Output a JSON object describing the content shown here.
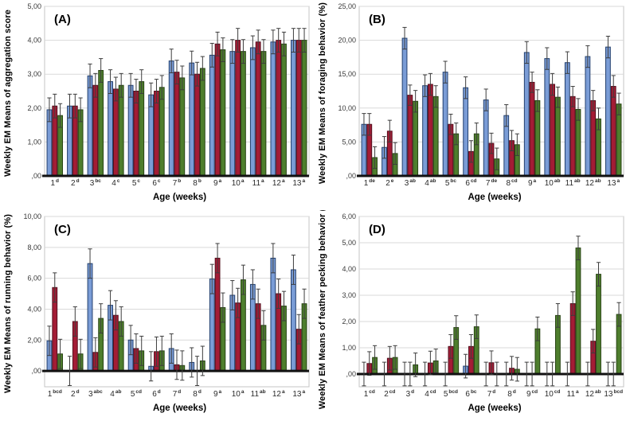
{
  "figure": {
    "background": "#ffffff",
    "grid_color": "#d9d9d9",
    "frame_color": "#c4c4c4",
    "axis_color": "#111111",
    "error_bar_color": "#3d3d3d",
    "tick_label_color": "#3a3a3a",
    "category_label_color": "#2b2b2b",
    "series_colors": [
      {
        "name": "blue-series",
        "fill": "#7a9cd6",
        "stroke": "#23406e"
      },
      {
        "name": "red-series",
        "fill": "#a31c35",
        "stroke": "#55101e"
      },
      {
        "name": "green-series",
        "fill": "#4e7e2d",
        "stroke": "#274312"
      }
    ]
  },
  "chart_data": [
    {
      "type": "bar",
      "panel_label": "(A)",
      "ylabel": "Weekly EM Means of aggregation score",
      "xlabel": "Age (weeks)",
      "ylim": [
        0,
        5
      ],
      "yticks": [
        0,
        1,
        2,
        3,
        4,
        5
      ],
      "ytick_labels": [
        ",00",
        "1,00",
        "2,00",
        "3,00",
        "4,00",
        "5,00"
      ],
      "grid": true,
      "legend": "none",
      "categories": [
        "1",
        "2",
        "3",
        "4",
        "5",
        "6",
        "7",
        "8",
        "9",
        "10",
        "11",
        "12",
        "13"
      ],
      "category_superscripts": [
        "d",
        "d",
        "bc",
        "c",
        "c",
        "c",
        "b",
        "b",
        "a",
        "a",
        "a",
        "a",
        "a"
      ],
      "series": [
        {
          "name": "blue",
          "values": [
            1.95,
            2.06,
            2.95,
            2.78,
            2.67,
            2.39,
            3.39,
            3.33,
            3.56,
            3.67,
            3.78,
            3.95,
            4.0
          ],
          "errors": [
            0.35,
            0.35,
            0.35,
            0.35,
            0.35,
            0.35,
            0.35,
            0.35,
            0.35,
            0.35,
            0.35,
            0.35,
            0.35
          ]
        },
        {
          "name": "red",
          "values": [
            2.06,
            2.06,
            2.67,
            2.56,
            2.5,
            2.5,
            3.06,
            3.0,
            3.89,
            4.0,
            3.95,
            4.0,
            4.0
          ],
          "errors": [
            0.35,
            0.35,
            0.35,
            0.35,
            0.35,
            0.35,
            0.35,
            0.35,
            0.35,
            0.35,
            0.35,
            0.35,
            0.35
          ]
        },
        {
          "name": "green",
          "values": [
            1.78,
            1.95,
            3.11,
            2.67,
            2.78,
            2.61,
            2.89,
            3.17,
            3.72,
            3.67,
            3.67,
            3.89,
            4.0
          ],
          "errors": [
            0.35,
            0.35,
            0.35,
            0.35,
            0.35,
            0.35,
            0.35,
            0.35,
            0.35,
            0.35,
            0.35,
            0.35,
            0.35
          ]
        }
      ]
    },
    {
      "type": "bar",
      "panel_label": "(B)",
      "ylabel": "Weekly EM Means of foraging behavior (%)",
      "xlabel": "Age (weeks)",
      "ylim": [
        0,
        25
      ],
      "yticks": [
        0,
        5,
        10,
        15,
        20,
        25
      ],
      "ytick_labels": [
        ",00",
        "5,00",
        "10,00",
        "15,00",
        "20,00",
        "25,00"
      ],
      "grid": true,
      "legend": "none",
      "categories": [
        "1",
        "2",
        "3",
        "4",
        "5",
        "6",
        "7",
        "8",
        "9",
        "10",
        "11",
        "12",
        "13"
      ],
      "category_superscripts": [
        "de",
        "e",
        "ab",
        "ab",
        "bc",
        "cd",
        "de",
        "cd",
        "a",
        "ab",
        "ab",
        "ab",
        "a"
      ],
      "series": [
        {
          "name": "blue",
          "values": [
            7.6,
            4.2,
            20.3,
            13.3,
            15.3,
            13.0,
            11.2,
            8.9,
            18.2,
            17.3,
            16.7,
            17.6,
            19.0
          ],
          "errors": [
            1.6,
            1.6,
            1.6,
            1.6,
            1.6,
            1.6,
            1.6,
            1.6,
            1.6,
            1.6,
            1.6,
            1.6,
            1.6
          ]
        },
        {
          "name": "red",
          "values": [
            7.6,
            6.6,
            11.9,
            13.5,
            7.6,
            3.6,
            4.8,
            5.2,
            13.8,
            13.5,
            11.7,
            11.1,
            13.2
          ],
          "errors": [
            1.6,
            1.6,
            1.5,
            1.6,
            1.5,
            1.6,
            1.5,
            1.5,
            1.5,
            1.6,
            1.5,
            1.5,
            1.6
          ]
        },
        {
          "name": "green",
          "values": [
            2.7,
            3.3,
            11.0,
            11.7,
            6.2,
            6.2,
            2.5,
            4.6,
            11.1,
            11.6,
            9.8,
            8.4,
            10.6
          ],
          "errors": [
            1.6,
            1.6,
            1.6,
            1.6,
            1.6,
            1.6,
            1.6,
            1.6,
            1.6,
            1.5,
            1.6,
            1.6,
            1.6
          ]
        }
      ]
    },
    {
      "type": "bar",
      "panel_label": "(C)",
      "ylabel": "Weekly EM Means of running behavior (%)",
      "xlabel": "Age (weeks)",
      "ylim": [
        0,
        10
      ],
      "yticks": [
        0,
        2,
        4,
        6,
        8,
        10
      ],
      "ytick_labels": [
        ",00",
        "2,00",
        "4,00",
        "6,00",
        "8,00",
        "10,00"
      ],
      "grid": true,
      "legend": "none",
      "categories": [
        "1",
        "2",
        "3",
        "4",
        "5",
        "6",
        "7",
        "8",
        "9",
        "10",
        "11",
        "12",
        "13"
      ],
      "category_superscripts": [
        "bcd",
        "d",
        "abc",
        "ab",
        "cd",
        "d",
        "d",
        "d",
        "a",
        "a",
        "ab",
        "a",
        "a"
      ],
      "series": [
        {
          "name": "blue",
          "values": [
            1.95,
            0.0,
            6.95,
            4.25,
            2.0,
            0.3,
            1.45,
            0.55,
            5.95,
            4.9,
            5.6,
            7.3,
            6.55
          ],
          "errors": [
            0.95,
            0.95,
            0.95,
            0.95,
            0.95,
            0.95,
            0.95,
            0.95,
            0.95,
            0.95,
            0.95,
            0.95,
            0.95
          ]
        },
        {
          "name": "red",
          "values": [
            5.4,
            3.2,
            1.2,
            3.6,
            1.45,
            1.25,
            0.4,
            0.0,
            7.3,
            4.4,
            4.35,
            5.0,
            2.7
          ],
          "errors": [
            0.95,
            0.95,
            0.95,
            0.95,
            0.95,
            0.95,
            0.95,
            0.95,
            0.95,
            0.95,
            0.95,
            0.95,
            0.95
          ]
        },
        {
          "name": "green",
          "values": [
            1.1,
            1.1,
            3.4,
            3.2,
            1.3,
            1.3,
            0.35,
            0.65,
            4.1,
            5.9,
            2.95,
            4.2,
            4.35
          ],
          "errors": [
            0.95,
            0.95,
            0.95,
            0.95,
            0.95,
            0.95,
            0.95,
            0.95,
            0.95,
            0.95,
            0.95,
            0.95,
            0.95
          ]
        }
      ]
    },
    {
      "type": "bar",
      "panel_label": "(D)",
      "ylabel": "Weekly EM Means of feather pecking behavior (%)",
      "xlabel": "Age (weeks)",
      "ylim": [
        0,
        6
      ],
      "yticks": [
        0,
        1,
        2,
        3,
        4,
        5,
        6
      ],
      "ytick_labels": [
        ",00",
        "1,00",
        "2,00",
        "3,00",
        "4,00",
        "5,00",
        "6,00"
      ],
      "grid": true,
      "legend": "none",
      "categories": [
        "1",
        "2",
        "3",
        "4",
        "5",
        "6",
        "7",
        "8",
        "9",
        "10",
        "11",
        "12",
        "13"
      ],
      "category_superscripts": [
        "cd",
        "cd",
        "d",
        "cd",
        "bcd",
        "bc",
        "d",
        "d",
        "cd",
        "cd",
        "a",
        "ab",
        "bcd"
      ],
      "series": [
        {
          "name": "blue",
          "values": [
            0.0,
            0.0,
            0.0,
            0.0,
            0.0,
            0.3,
            0.0,
            0.0,
            0.0,
            0.0,
            0.0,
            0.0,
            0.0
          ],
          "errors": [
            0.45,
            0.45,
            0.45,
            0.45,
            0.45,
            0.45,
            0.45,
            0.45,
            0.45,
            0.45,
            0.45,
            0.45,
            0.45
          ]
        },
        {
          "name": "red",
          "values": [
            0.4,
            0.6,
            0.0,
            0.42,
            1.05,
            1.05,
            0.43,
            0.22,
            0.0,
            0.0,
            2.68,
            1.25,
            0.0
          ],
          "errors": [
            0.45,
            0.45,
            0.45,
            0.45,
            0.45,
            0.45,
            0.45,
            0.45,
            0.45,
            0.45,
            0.45,
            0.45,
            0.45
          ]
        },
        {
          "name": "green",
          "values": [
            0.63,
            0.63,
            0.35,
            0.5,
            1.77,
            1.8,
            0.0,
            0.18,
            1.72,
            2.23,
            4.8,
            3.8,
            2.27
          ],
          "errors": [
            0.45,
            0.45,
            0.45,
            0.45,
            0.45,
            0.45,
            0.45,
            0.45,
            0.45,
            0.45,
            0.45,
            0.45,
            0.45
          ]
        }
      ]
    }
  ]
}
